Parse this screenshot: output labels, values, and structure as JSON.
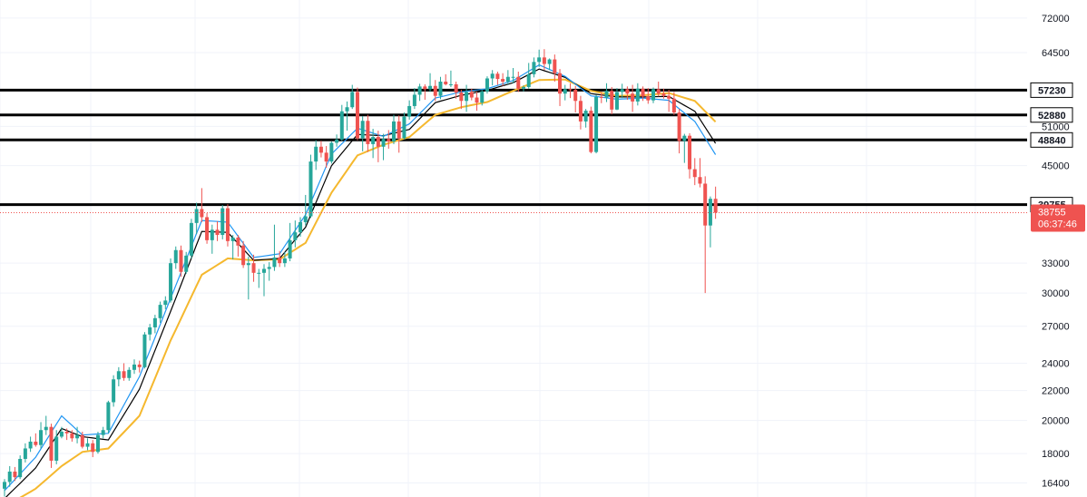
{
  "chart_data": {
    "type": "candlestick",
    "title": "",
    "xlabel": "",
    "ylabel": "",
    "scale": "log",
    "grid": true,
    "ylim": [
      16000,
      74500
    ],
    "y_ticks": [
      72000,
      64500,
      57230,
      52880,
      51000,
      48840,
      45000,
      39755,
      38755,
      33000,
      30000,
      27000,
      24000,
      22000,
      20000,
      18000,
      16400
    ],
    "y_tick_labels": [
      "72000",
      "64500",
      "",
      "",
      "51000",
      "",
      "45000",
      "",
      "",
      "33000",
      "30000",
      "27000",
      "24000",
      "22000",
      "20000",
      "18000",
      "16400"
    ],
    "horizontal_levels": [
      {
        "value": 57230,
        "label": "57230"
      },
      {
        "value": 52880,
        "label": "52880"
      },
      {
        "value": 48840,
        "label": "48840"
      },
      {
        "value": 39755,
        "label": "39755"
      }
    ],
    "current_price": {
      "value": 38755,
      "label": "38755",
      "countdown": "06:37:46"
    },
    "colors": {
      "up": "#26a69a",
      "down": "#ef5350",
      "ma_fast": "#2196f3",
      "ma_mid": "#000000",
      "ma_slow": "#f5b82e",
      "level": "#000000",
      "grid": "#f0f3fa"
    },
    "candles": [
      [
        16100,
        16600,
        15700,
        16450
      ],
      [
        16450,
        17300,
        16200,
        17000
      ],
      [
        17000,
        17250,
        16500,
        16700
      ],
      [
        16700,
        17900,
        16600,
        17700
      ],
      [
        17700,
        18600,
        17500,
        18300
      ],
      [
        18300,
        19000,
        18100,
        18700
      ],
      [
        18700,
        19200,
        18400,
        18500
      ],
      [
        18500,
        19900,
        18300,
        19400
      ],
      [
        19400,
        20300,
        19100,
        19600
      ],
      [
        19600,
        19800,
        17200,
        17600
      ],
      [
        17600,
        19400,
        17400,
        19000
      ],
      [
        19000,
        19600,
        18900,
        19300
      ],
      [
        19300,
        19500,
        18800,
        19200
      ],
      [
        19200,
        19400,
        18700,
        18900
      ],
      [
        18900,
        19600,
        18600,
        19100
      ],
      [
        19100,
        19300,
        18300,
        18400
      ],
      [
        18400,
        18900,
        18200,
        18600
      ],
      [
        18600,
        18800,
        17800,
        18100
      ],
      [
        18100,
        19300,
        18000,
        19100
      ],
      [
        19100,
        19600,
        18900,
        19400
      ],
      [
        19400,
        21300,
        19200,
        21200
      ],
      [
        21200,
        23100,
        20900,
        22800
      ],
      [
        22800,
        23700,
        22300,
        23400
      ],
      [
        23400,
        24000,
        22700,
        22900
      ],
      [
        22900,
        23700,
        22700,
        23500
      ],
      [
        23500,
        24300,
        23200,
        23900
      ],
      [
        23900,
        24200,
        23300,
        23700
      ],
      [
        23700,
        26500,
        23600,
        26300
      ],
      [
        26300,
        27200,
        25800,
        26900
      ],
      [
        26900,
        28000,
        26400,
        27700
      ],
      [
        27700,
        29200,
        27300,
        28900
      ],
      [
        28900,
        29700,
        28500,
        29300
      ],
      [
        29300,
        33500,
        29100,
        33000
      ],
      [
        33000,
        34800,
        32400,
        34400
      ],
      [
        34400,
        34900,
        31600,
        32100
      ],
      [
        32100,
        34200,
        31900,
        33800
      ],
      [
        33800,
        38000,
        33500,
        37500
      ],
      [
        37500,
        40000,
        36200,
        39200
      ],
      [
        39200,
        41900,
        37600,
        38200
      ],
      [
        38200,
        38700,
        35100,
        35500
      ],
      [
        35500,
        37300,
        34000,
        36700
      ],
      [
        36700,
        37700,
        35400,
        36100
      ],
      [
        36100,
        39700,
        35600,
        39300
      ],
      [
        39300,
        39800,
        34800,
        35400
      ],
      [
        35400,
        36100,
        33400,
        35800
      ],
      [
        35800,
        36100,
        33700,
        34900
      ],
      [
        34900,
        35400,
        32500,
        32800
      ],
      [
        32800,
        33700,
        29400,
        33000
      ],
      [
        33000,
        33900,
        31100,
        32000
      ],
      [
        32000,
        32400,
        30500,
        32000
      ],
      [
        32000,
        32900,
        29700,
        32400
      ],
      [
        32400,
        33100,
        31200,
        32600
      ],
      [
        32600,
        37300,
        32200,
        33600
      ],
      [
        33600,
        34300,
        32600,
        33000
      ],
      [
        33000,
        34200,
        32600,
        33500
      ],
      [
        33500,
        37500,
        33200,
        35500
      ],
      [
        35500,
        37800,
        34700,
        36400
      ],
      [
        36400,
        38200,
        35900,
        37600
      ],
      [
        37600,
        41000,
        37200,
        38300
      ],
      [
        38300,
        46600,
        38100,
        45600
      ],
      [
        45600,
        48800,
        44400,
        47800
      ],
      [
        47800,
        48700,
        46200,
        46900
      ],
      [
        46900,
        47900,
        44700,
        45600
      ],
      [
        45600,
        48600,
        45300,
        48400
      ],
      [
        48400,
        49700,
        47800,
        48900
      ],
      [
        48900,
        54600,
        48700,
        53500
      ],
      [
        53500,
        55200,
        50300,
        54200
      ],
      [
        54200,
        58200,
        53900,
        56900
      ],
      [
        56900,
        57700,
        48800,
        49100
      ],
      [
        49100,
        52700,
        47100,
        51900
      ],
      [
        51900,
        52900,
        47000,
        48200
      ],
      [
        48200,
        50600,
        46100,
        49300
      ],
      [
        49300,
        50300,
        45500,
        47800
      ],
      [
        47800,
        49800,
        45800,
        49000
      ],
      [
        49000,
        50400,
        47500,
        48600
      ],
      [
        48600,
        52900,
        48200,
        51800
      ],
      [
        51800,
        52800,
        46900,
        49100
      ],
      [
        49100,
        53300,
        48900,
        52600
      ],
      [
        52600,
        55400,
        52100,
        54400
      ],
      [
        54400,
        57600,
        53900,
        56400
      ],
      [
        56400,
        58400,
        55300,
        57900
      ],
      [
        57900,
        58300,
        55500,
        57400
      ],
      [
        57400,
        60400,
        56900,
        58000
      ],
      [
        58000,
        59100,
        55300,
        56200
      ],
      [
        56200,
        59700,
        55600,
        58800
      ],
      [
        58800,
        60200,
        58100,
        58300
      ],
      [
        58300,
        60900,
        57800,
        58300
      ],
      [
        58300,
        58800,
        55700,
        56800
      ],
      [
        56800,
        57300,
        53900,
        55300
      ],
      [
        55300,
        58200,
        53400,
        56900
      ],
      [
        56900,
        57500,
        55400,
        55900
      ],
      [
        55900,
        56900,
        53600,
        55000
      ],
      [
        55000,
        57400,
        54500,
        57000
      ],
      [
        57000,
        59800,
        56600,
        59400
      ],
      [
        59400,
        61000,
        58100,
        60300
      ],
      [
        60300,
        60700,
        58200,
        59300
      ],
      [
        59300,
        60400,
        58000,
        58800
      ],
      [
        58800,
        61000,
        58300,
        59700
      ],
      [
        59700,
        61400,
        58500,
        59700
      ],
      [
        59700,
        60700,
        56900,
        57500
      ],
      [
        57500,
        58100,
        57000,
        57800
      ],
      [
        57800,
        62400,
        57500,
        60200
      ],
      [
        60200,
        63500,
        59600,
        62600
      ],
      [
        62600,
        65100,
        61600,
        63500
      ],
      [
        63500,
        65200,
        61000,
        62200
      ],
      [
        62200,
        63300,
        61000,
        63100
      ],
      [
        63100,
        64100,
        58800,
        60400
      ],
      [
        60400,
        61200,
        54400,
        56600
      ],
      [
        56600,
        58200,
        55400,
        57400
      ],
      [
        57400,
        58500,
        55800,
        57300
      ],
      [
        57300,
        58000,
        53300,
        55300
      ],
      [
        55300,
        56200,
        50500,
        51800
      ],
      [
        51800,
        53900,
        50800,
        53600
      ],
      [
        53600,
        54300,
        46800,
        47000
      ],
      [
        47000,
        56400,
        46800,
        56000
      ],
      [
        56000,
        56900,
        54900,
        55900
      ],
      [
        55900,
        58500,
        55100,
        57100
      ],
      [
        57100,
        57800,
        53000,
        53800
      ],
      [
        53800,
        57600,
        53700,
        56900
      ],
      [
        56900,
        58400,
        55800,
        57400
      ],
      [
        57400,
        57900,
        55500,
        56600
      ],
      [
        56600,
        58200,
        53400,
        55200
      ],
      [
        55200,
        58500,
        54500,
        57500
      ],
      [
        57500,
        57900,
        55300,
        56100
      ],
      [
        56100,
        57600,
        54800,
        55400
      ],
      [
        55400,
        57700,
        54900,
        57400
      ],
      [
        57400,
        58800,
        56100,
        56600
      ],
      [
        56600,
        57500,
        55700,
        56200
      ],
      [
        56200,
        57300,
        53400,
        55700
      ],
      [
        55700,
        56900,
        52900,
        53300
      ],
      [
        53300,
        53900,
        46800,
        48700
      ],
      [
        48700,
        49800,
        45400,
        49500
      ],
      [
        49500,
        49900,
        43200,
        44500
      ],
      [
        44500,
        46100,
        42300,
        43400
      ],
      [
        43400,
        46100,
        42000,
        42500
      ],
      [
        42500,
        43500,
        30000,
        37200
      ],
      [
        37200,
        40800,
        34700,
        40500
      ],
      [
        40500,
        42100,
        38000,
        38755
      ]
    ],
    "ma_fast_anchors": [
      [
        0,
        16000
      ],
      [
        6,
        17800
      ],
      [
        11,
        20300
      ],
      [
        15,
        19100
      ],
      [
        20,
        19200
      ],
      [
        26,
        23000
      ],
      [
        32,
        29500
      ],
      [
        38,
        37800
      ],
      [
        43,
        37600
      ],
      [
        48,
        33600
      ],
      [
        53,
        34000
      ],
      [
        58,
        38500
      ],
      [
        63,
        46700
      ],
      [
        68,
        50700
      ],
      [
        73,
        49400
      ],
      [
        78,
        51400
      ],
      [
        83,
        55800
      ],
      [
        88,
        56900
      ],
      [
        93,
        57500
      ],
      [
        98,
        59000
      ],
      [
        103,
        62000
      ],
      [
        108,
        59800
      ],
      [
        113,
        56200
      ],
      [
        118,
        55600
      ],
      [
        123,
        55800
      ],
      [
        128,
        55400
      ],
      [
        133,
        51800
      ],
      [
        138,
        45400
      ]
    ],
    "ma_mid_anchors": [
      [
        0,
        15600
      ],
      [
        6,
        17200
      ],
      [
        11,
        19500
      ],
      [
        15,
        19000
      ],
      [
        20,
        18800
      ],
      [
        26,
        22100
      ],
      [
        32,
        28300
      ],
      [
        38,
        36500
      ],
      [
        43,
        36400
      ],
      [
        48,
        33300
      ],
      [
        53,
        33500
      ],
      [
        58,
        37000
      ],
      [
        63,
        45000
      ],
      [
        68,
        49700
      ],
      [
        73,
        49500
      ],
      [
        78,
        50500
      ],
      [
        83,
        55000
      ],
      [
        88,
        56300
      ],
      [
        93,
        57200
      ],
      [
        98,
        58600
      ],
      [
        103,
        61200
      ],
      [
        108,
        59600
      ],
      [
        113,
        56600
      ],
      [
        118,
        56000
      ],
      [
        123,
        56000
      ],
      [
        128,
        56100
      ],
      [
        133,
        53500
      ],
      [
        138,
        47100
      ]
    ],
    "ma_slow_anchors": [
      [
        0,
        15200
      ],
      [
        6,
        16100
      ],
      [
        11,
        17300
      ],
      [
        15,
        18100
      ],
      [
        20,
        18300
      ],
      [
        26,
        20300
      ],
      [
        32,
        25800
      ],
      [
        38,
        31800
      ],
      [
        43,
        33500
      ],
      [
        48,
        33300
      ],
      [
        53,
        33400
      ],
      [
        58,
        35200
      ],
      [
        63,
        41300
      ],
      [
        68,
        46500
      ],
      [
        73,
        48100
      ],
      [
        78,
        49300
      ],
      [
        83,
        52900
      ],
      [
        88,
        54200
      ],
      [
        93,
        55100
      ],
      [
        98,
        57100
      ],
      [
        103,
        59100
      ],
      [
        108,
        59200
      ],
      [
        113,
        57100
      ],
      [
        118,
        56200
      ],
      [
        123,
        56300
      ],
      [
        128,
        56700
      ],
      [
        133,
        55300
      ],
      [
        138,
        50900
      ]
    ]
  }
}
